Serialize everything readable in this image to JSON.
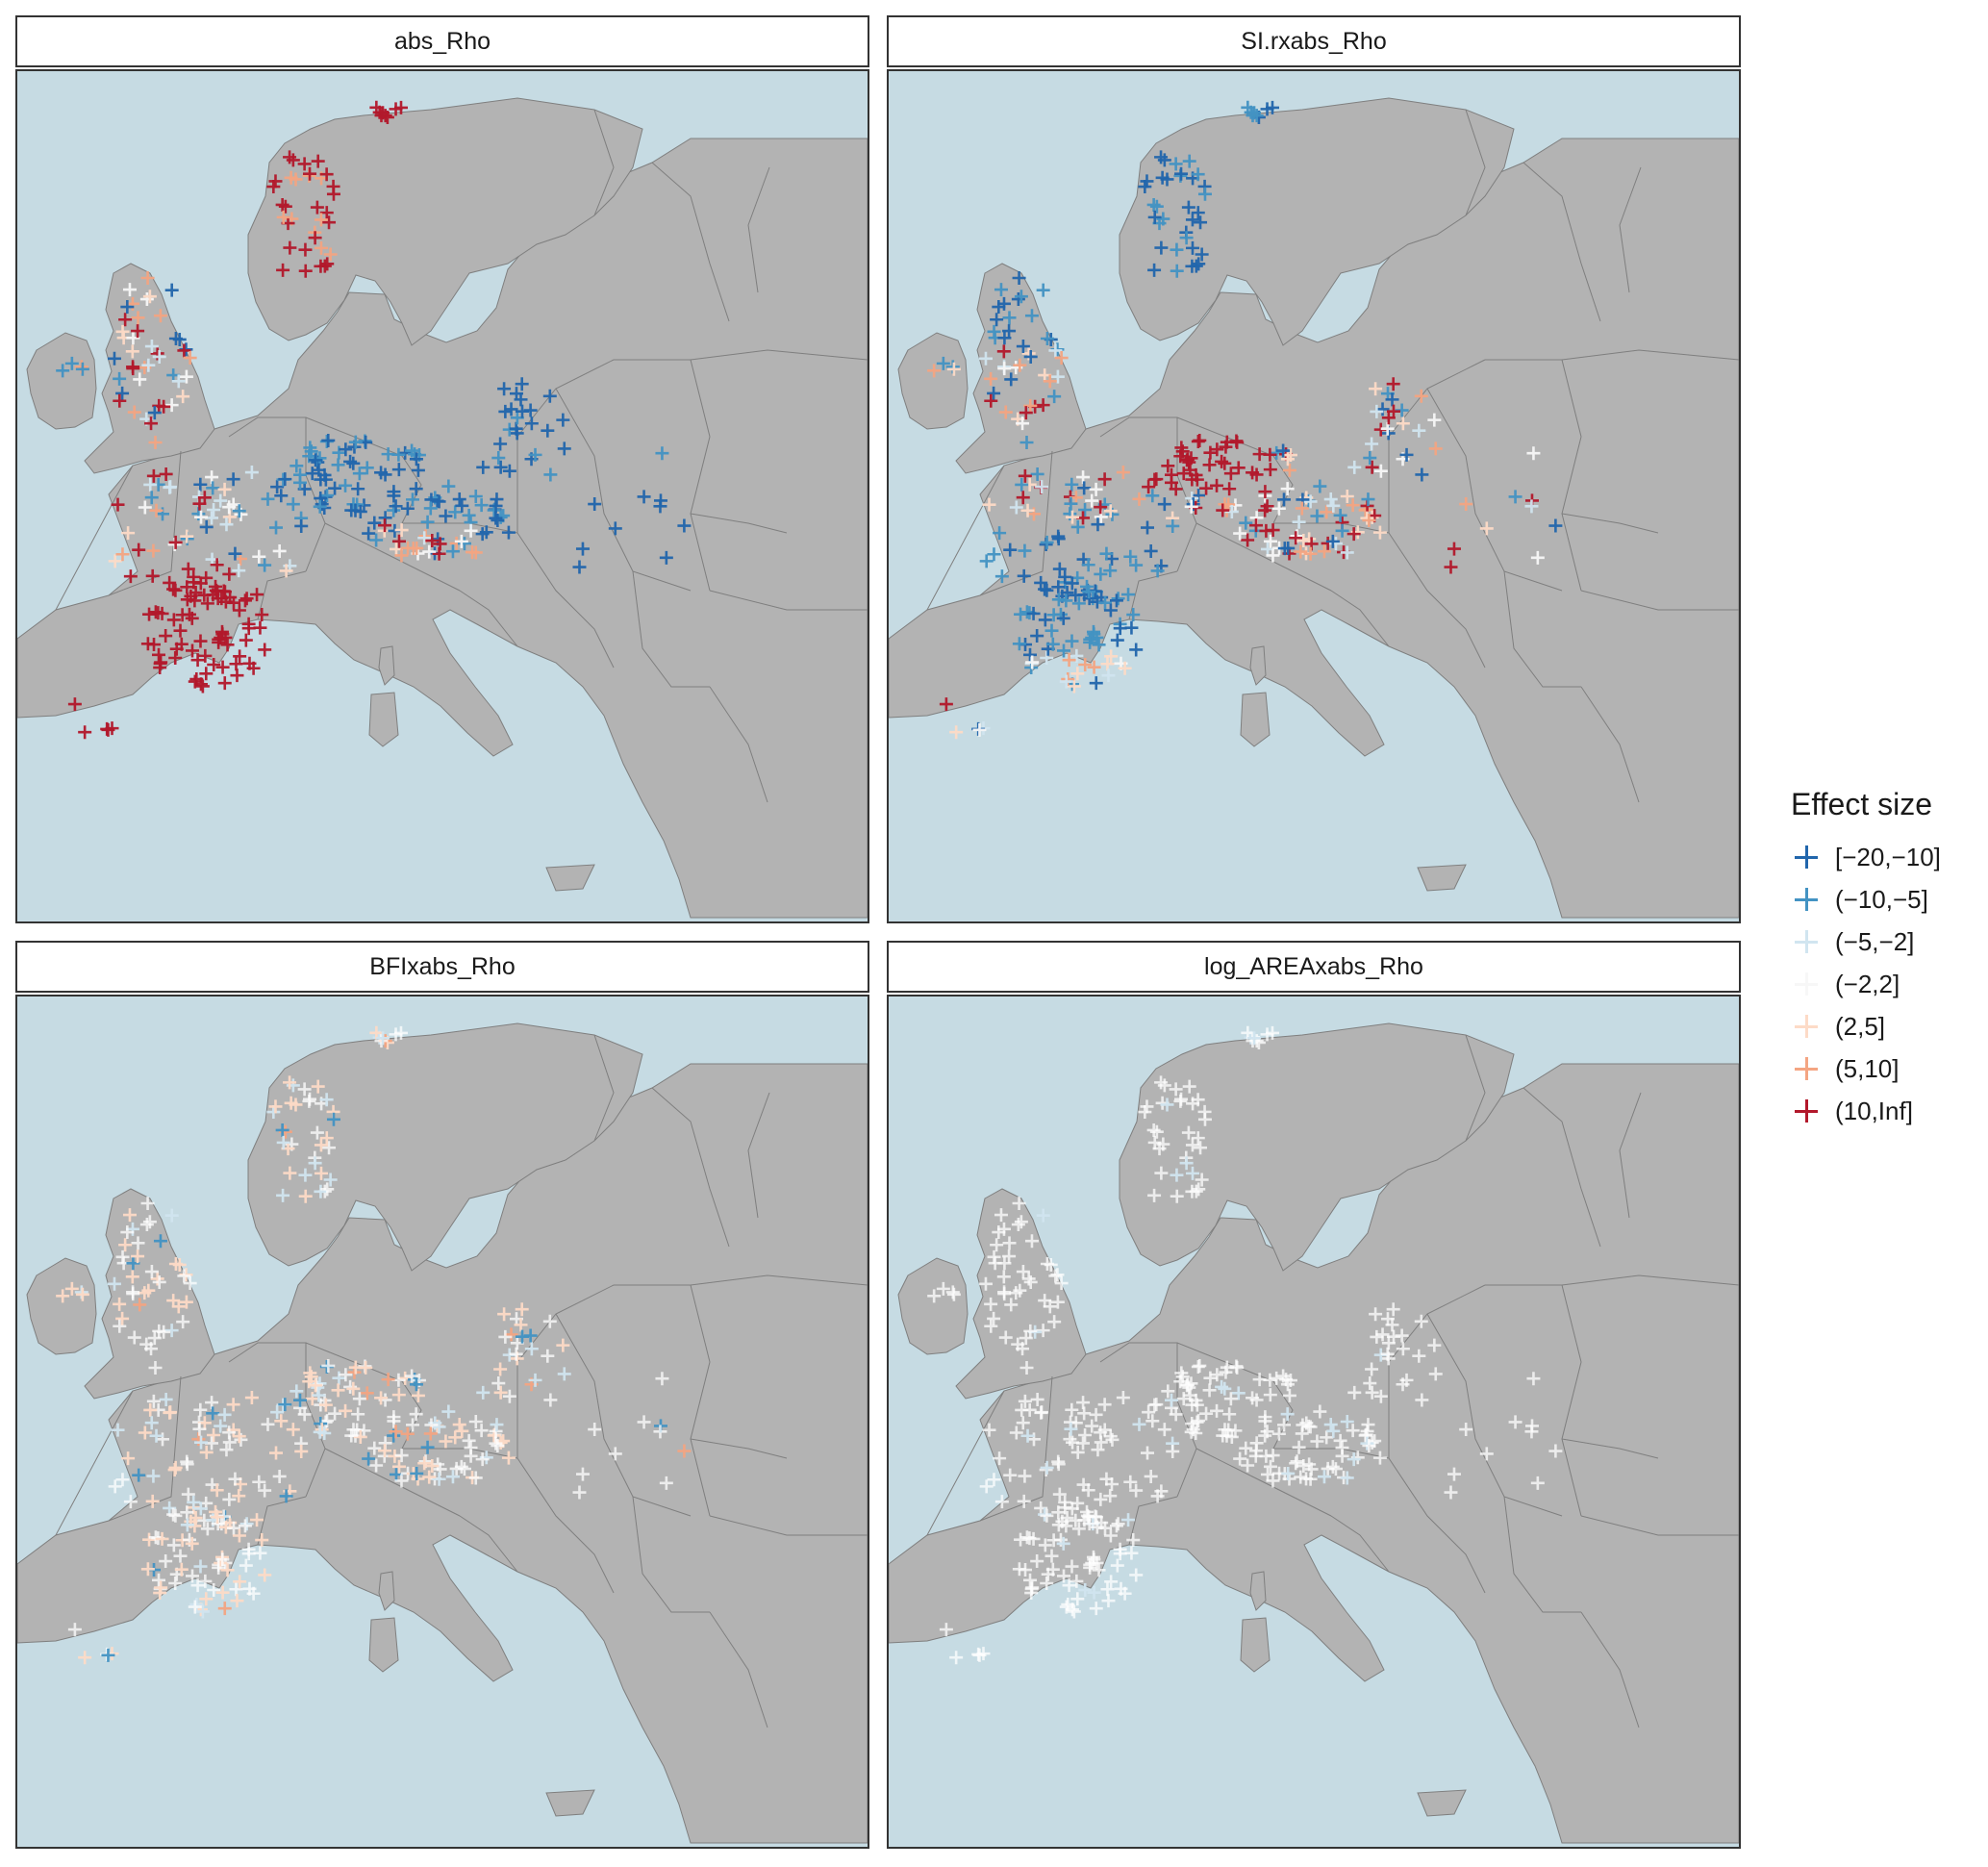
{
  "legend": {
    "title": "Effect size",
    "items": [
      {
        "label": "[−20,−10]",
        "color": "#2166ac"
      },
      {
        "label": "(−10,−5]",
        "color": "#4393c3"
      },
      {
        "label": "(−5,−2]",
        "color": "#d1e5f0"
      },
      {
        "label": "(−2,2]",
        "color": "#f7f7f7"
      },
      {
        "label": "(2,5]",
        "color": "#fddbc7"
      },
      {
        "label": "(5,10]",
        "color": "#f4a582"
      },
      {
        "label": "(10,Inf]",
        "color": "#b2182b"
      }
    ]
  },
  "colors": {
    "sea": "#c6dbe3",
    "land": "#b3b3b3",
    "border": "#7f7f7f",
    "frame": "#333333"
  },
  "panels": [
    {
      "id": "abs",
      "title": "abs_Rho"
    },
    {
      "id": "si",
      "title": "SI.rxabs_Rho"
    },
    {
      "id": "bfi",
      "title": "BFIxabs_Rho"
    },
    {
      "id": "area",
      "title": "log_AREAxabs_Rho"
    }
  ]
}
